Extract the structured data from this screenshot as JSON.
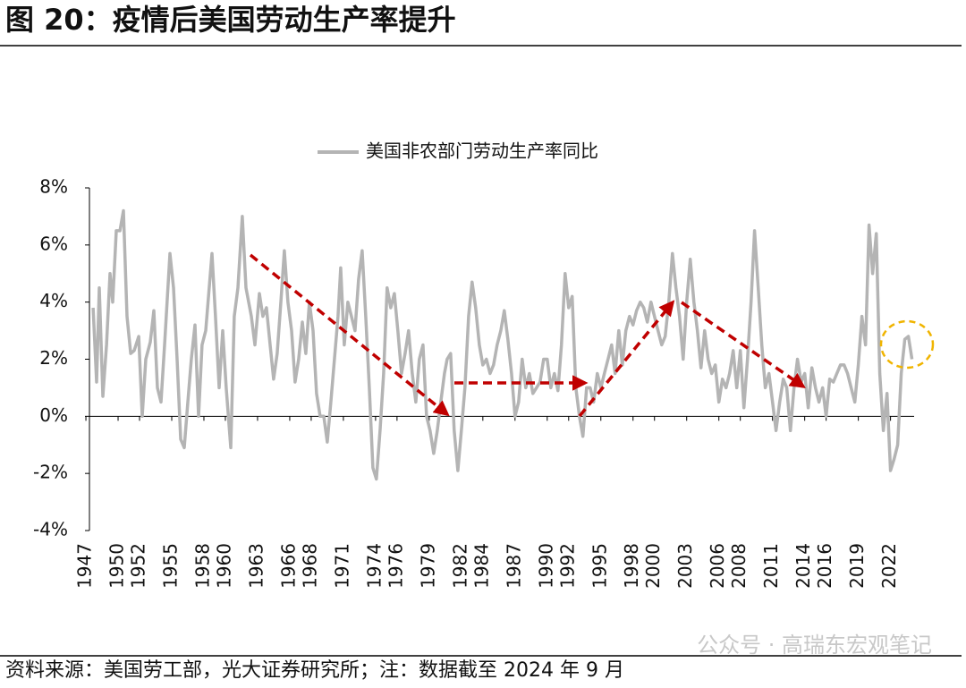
{
  "chart_data": {
    "type": "line",
    "title": "图 20：疫情后美国劳动生产率提升",
    "source": "资料来源：美国劳工部，光大证券研究所；注：数据截至 2024 年 9 月",
    "watermark": "公众号 · 高瑞东宏观笔记",
    "xlim": [
      1947.33,
      2024.2
    ],
    "xticks": [
      1947,
      1950,
      1952,
      1955,
      1958,
      1960,
      1963,
      1966,
      1968,
      1971,
      1974,
      1976,
      1979,
      1982,
      1984,
      1987,
      1990,
      1992,
      1995,
      1998,
      2000,
      2003,
      2006,
      2008,
      2011,
      2014,
      2016,
      2019,
      2022
    ],
    "ylim": [
      -4,
      8
    ],
    "yticks": [
      {
        "value": -4,
        "label": "-4%"
      },
      {
        "value": -2,
        "label": "-2%"
      },
      {
        "value": 0,
        "label": "0%"
      },
      {
        "value": 2,
        "label": "2%"
      },
      {
        "value": 4,
        "label": "4%"
      },
      {
        "value": 6,
        "label": "6%"
      },
      {
        "value": 8,
        "label": "8%"
      }
    ],
    "legend": "top",
    "x": [
      1947.67,
      1948.0,
      1948.25,
      1948.58,
      1948.92,
      1949.25,
      1949.5,
      1949.83,
      1950.17,
      1950.5,
      1950.83,
      1951.17,
      1951.5,
      1951.92,
      1952.25,
      1952.58,
      1953.0,
      1953.33,
      1953.67,
      1954.0,
      1954.33,
      1954.83,
      1955.17,
      1955.5,
      1955.83,
      1956.17,
      1956.5,
      1956.83,
      1957.17,
      1957.5,
      1957.83,
      1958.17,
      1958.75,
      1959.08,
      1959.42,
      1959.75,
      1960.08,
      1960.5,
      1960.83,
      1961.17,
      1961.58,
      1961.92,
      1962.42,
      1962.75,
      1963.17,
      1963.5,
      1963.83,
      1964.17,
      1964.5,
      1964.83,
      1965.17,
      1965.5,
      1965.83,
      1966.17,
      1966.5,
      1966.83,
      1967.17,
      1967.5,
      1967.83,
      1968.17,
      1968.5,
      1968.83,
      1969.17,
      1969.5,
      1969.83,
      1970.17,
      1970.5,
      1970.75,
      1971.08,
      1971.42,
      1971.75,
      1972.08,
      1972.42,
      1972.75,
      1973.08,
      1973.42,
      1973.75,
      1974.08,
      1974.42,
      1974.75,
      1975.08,
      1975.42,
      1975.75,
      1976.08,
      1976.42,
      1976.75,
      1977.08,
      1977.42,
      1977.75,
      1978.08,
      1978.42,
      1978.75,
      1979.08,
      1979.42,
      1979.75,
      1980.08,
      1980.42,
      1980.67,
      1981.0,
      1981.33,
      1981.67,
      1982.0,
      1982.33,
      1982.67,
      1983.0,
      1983.33,
      1983.67,
      1984.0,
      1984.33,
      1984.67,
      1985.0,
      1985.33,
      1985.67,
      1986.0,
      1986.33,
      1986.67,
      1987.0,
      1987.33,
      1987.67,
      1988.0,
      1988.33,
      1988.67,
      1989.0,
      1989.33,
      1989.67,
      1990.0,
      1990.33,
      1990.67,
      1991.0,
      1991.33,
      1991.67,
      1992.0,
      1992.33,
      1992.67,
      1993.0,
      1993.33,
      1993.67,
      1994.0,
      1994.33,
      1994.67,
      1995.0,
      1995.33,
      1995.67,
      1996.0,
      1996.33,
      1996.67,
      1997.0,
      1997.33,
      1997.67,
      1998.0,
      1998.33,
      1998.67,
      1999.0,
      1999.33,
      1999.67,
      2000.0,
      2000.33,
      2000.67,
      2001.0,
      2001.33,
      2001.67,
      2002.0,
      2002.33,
      2002.67,
      2003.0,
      2003.33,
      2003.67,
      2004.0,
      2004.33,
      2004.67,
      2005.0,
      2005.33,
      2005.67,
      2006.0,
      2006.33,
      2006.67,
      2007.0,
      2007.33,
      2007.67,
      2008.0,
      2008.33,
      2008.67,
      2009.0,
      2009.33,
      2009.67,
      2010.0,
      2010.33,
      2010.67,
      2011.0,
      2011.33,
      2011.67,
      2012.0,
      2012.33,
      2012.67,
      2013.0,
      2013.33,
      2013.67,
      2014.0,
      2014.33,
      2014.67,
      2015.0,
      2015.33,
      2015.67,
      2016.0,
      2016.33,
      2016.67,
      2017.0,
      2017.33,
      2017.67,
      2018.0,
      2018.33,
      2018.67,
      2019.0,
      2019.33,
      2019.67,
      2020.0,
      2020.33,
      2020.67,
      2021.0,
      2021.33,
      2021.67,
      2022.0,
      2022.33,
      2022.67,
      2023.0,
      2023.33,
      2023.67,
      2024.0
    ],
    "series": [
      {
        "name": "美国非农部门劳动生产率同比",
        "color": "#b4b4b4",
        "values": [
          3.8,
          1.2,
          4.5,
          0.7,
          2.5,
          5.0,
          4.0,
          6.5,
          6.5,
          7.2,
          3.5,
          2.2,
          2.3,
          2.8,
          0.0,
          2.0,
          2.6,
          3.7,
          1.0,
          0.5,
          2.5,
          5.7,
          4.5,
          2.0,
          -0.8,
          -1.1,
          0.5,
          2.0,
          3.2,
          0.0,
          2.5,
          3.0,
          5.7,
          3.5,
          1.0,
          3.0,
          1.0,
          -1.1,
          3.5,
          4.5,
          7.0,
          4.5,
          3.5,
          2.5,
          4.3,
          3.5,
          3.8,
          2.5,
          1.3,
          2.2,
          4.0,
          5.8,
          4.0,
          3.0,
          1.2,
          2.0,
          3.3,
          2.2,
          4.0,
          3.0,
          0.8,
          0.0,
          0.0,
          -0.9,
          0.5,
          2.0,
          3.5,
          5.2,
          2.5,
          4.0,
          3.5,
          3.0,
          4.8,
          5.8,
          3.5,
          1.0,
          -1.8,
          -2.2,
          -0.5,
          1.5,
          4.5,
          3.8,
          4.3,
          3.0,
          1.5,
          2.2,
          3.0,
          1.5,
          0.5,
          2.0,
          2.5,
          0.0,
          -0.5,
          -1.3,
          -0.5,
          0.5,
          1.5,
          2.0,
          2.2,
          -0.5,
          -1.9,
          -0.5,
          1.0,
          3.5,
          4.7,
          3.8,
          2.5,
          1.8,
          2.0,
          1.5,
          1.8,
          2.5,
          3.0,
          3.7,
          2.7,
          1.5,
          0.0,
          0.5,
          2.0,
          1.0,
          1.5,
          0.8,
          1.0,
          1.2,
          2.0,
          2.0,
          1.0,
          1.5,
          0.9,
          2.5,
          5.0,
          3.8,
          4.2,
          1.0,
          0.0,
          -0.7,
          1.0,
          1.0,
          0.5,
          1.5,
          1.0,
          1.5,
          2.0,
          2.5,
          1.5,
          3.0,
          1.8,
          3.0,
          3.5,
          3.2,
          3.7,
          4.0,
          3.8,
          3.3,
          4.0,
          3.5,
          3.0,
          2.5,
          2.8,
          4.0,
          5.7,
          4.5,
          3.5,
          2.0,
          4.0,
          5.5,
          4.0,
          3.0,
          1.7,
          3.0,
          2.0,
          1.5,
          1.8,
          0.5,
          1.3,
          1.0,
          1.5,
          2.3,
          1.0,
          2.3,
          0.3,
          2.0,
          4.0,
          6.5,
          4.5,
          2.5,
          1.0,
          1.5,
          0.5,
          -0.5,
          0.5,
          1.3,
          1.0,
          -0.5,
          1.0,
          2.0,
          1.2,
          1.5,
          0.3,
          1.7,
          1.0,
          0.5,
          1.0,
          0.0,
          1.3,
          1.2,
          1.5,
          1.8,
          1.8,
          1.5,
          1.0,
          0.5,
          1.8,
          3.5,
          2.5,
          6.7,
          5.0,
          6.4,
          1.5,
          -0.5,
          0.8,
          -1.9,
          -1.5,
          -1.0,
          1.5,
          2.7,
          2.8,
          2.0
        ]
      }
    ]
  }
}
